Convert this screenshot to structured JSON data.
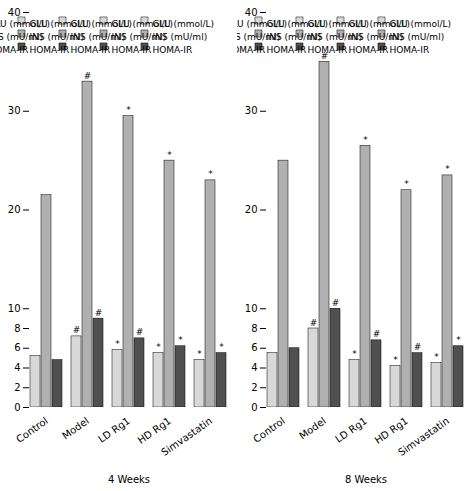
{
  "chart_data": [
    {
      "type": "bar",
      "xlabel": "4 Weeks",
      "categories": [
        "Control",
        "Model",
        "LD Rg1",
        "HD Rg1",
        "Simvastatin"
      ],
      "series": [
        {
          "name": "GLU (mmol/L)",
          "color": "#d8d8d8",
          "values": [
            5.2,
            7.2,
            5.8,
            5.5,
            4.8
          ],
          "annotations": [
            null,
            "#",
            "*",
            "*",
            "*"
          ]
        },
        {
          "name": "INS (mU/ml)",
          "color": "#b0b0b0",
          "values": [
            21.5,
            33.0,
            29.5,
            25.0,
            23.0
          ],
          "annotations": [
            null,
            "#",
            "*",
            "*",
            "*"
          ]
        },
        {
          "name": "HOMA-IR",
          "color": "#505050",
          "values": [
            4.8,
            9.0,
            7.0,
            6.2,
            5.5
          ],
          "annotations": [
            null,
            "#",
            "#",
            "*",
            "*"
          ]
        }
      ],
      "ylim": [
        0,
        40
      ],
      "yticks": [
        0,
        2,
        4,
        6,
        8,
        10,
        20,
        30,
        40
      ],
      "grid": false,
      "legend": "upper right"
    },
    {
      "type": "bar",
      "xlabel": "8 Weeks",
      "categories": [
        "Control",
        "Model",
        "LD Rg1",
        "HD Rg1",
        "Simvastatin"
      ],
      "series": [
        {
          "name": "GLU (mmol/L)",
          "color": "#d8d8d8",
          "values": [
            5.5,
            8.0,
            4.8,
            4.2,
            4.5
          ],
          "annotations": [
            null,
            "#",
            "*",
            "*",
            "*"
          ]
        },
        {
          "name": "INS (mU/ml)",
          "color": "#b0b0b0",
          "values": [
            25.0,
            35.0,
            26.5,
            22.0,
            23.5
          ],
          "annotations": [
            null,
            "#",
            "*",
            "*",
            "*"
          ]
        },
        {
          "name": "HOMA-IR",
          "color": "#505050",
          "values": [
            6.0,
            10.0,
            6.8,
            5.5,
            6.2
          ],
          "annotations": [
            null,
            "#",
            "#",
            "#",
            "*"
          ]
        }
      ],
      "ylim": [
        0,
        40
      ],
      "yticks": [
        0,
        2,
        4,
        6,
        8,
        10,
        20,
        30,
        40
      ],
      "grid": false,
      "legend": "upper right"
    }
  ]
}
